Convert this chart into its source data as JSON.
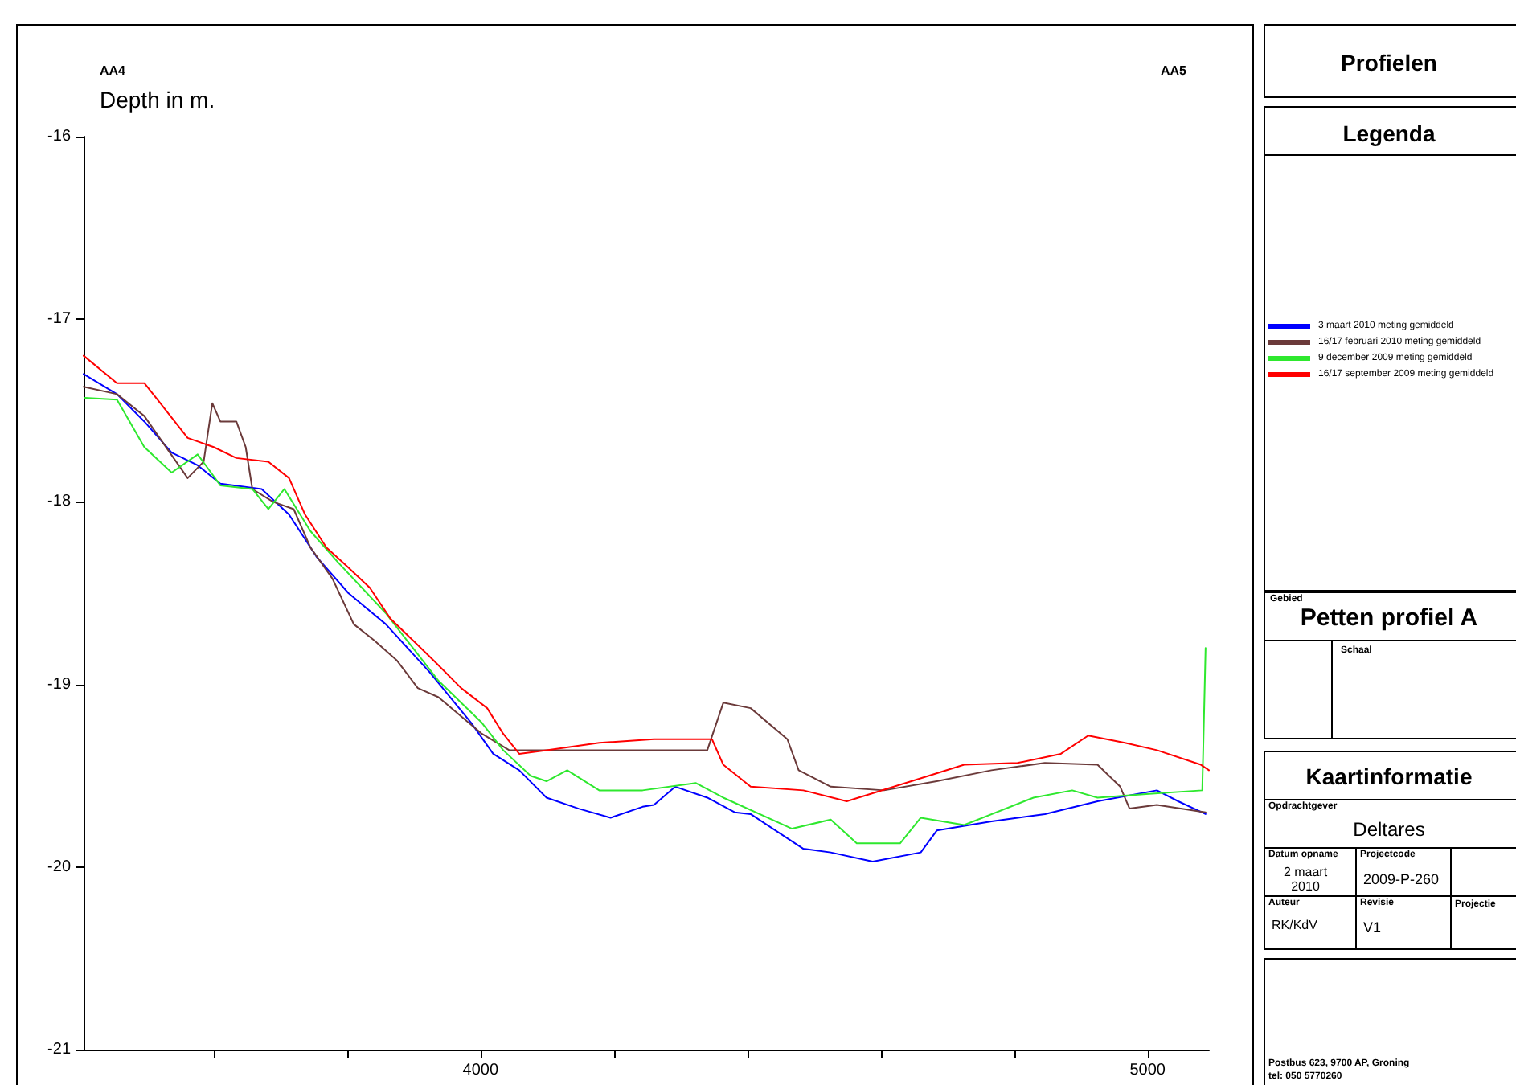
{
  "chart_data": {
    "type": "line",
    "title": "Profielen",
    "subtitle": "Petten profiel A",
    "ylabel": "Depth in m.",
    "legend_title": "Legenda",
    "legend": "right",
    "grid": false,
    "marker": "none",
    "line_style": "solid",
    "xlim": [
      3405,
      5092
    ],
    "xticks": [
      {
        "value": 3600,
        "label": null
      },
      {
        "value": 3800,
        "label": null
      },
      4000,
      {
        "value": 4200,
        "label": null
      },
      {
        "value": 4400,
        "label": null
      },
      {
        "value": 4600,
        "label": null
      },
      {
        "value": 4800,
        "label": null
      },
      5000
    ],
    "ylim": [
      -21,
      -16
    ],
    "yticks": [
      -21,
      -20,
      -19,
      -18,
      -17,
      -16
    ],
    "annotations": [
      "AA4",
      "AA5",
      "Gebied",
      "Schaal",
      "Kaartinformatie",
      "Opdrachtgever",
      "Deltares",
      "Datum opname",
      "2 maart 2010",
      "Projectcode",
      "2009-P-260",
      "Auteur",
      "RK/KdV",
      "Revisie",
      "V1",
      "Projectie",
      "Postbus 623, 9700 AP, Groning",
      "tel: 050 5770260"
    ],
    "series": [
      {
        "name": "3 maart 2010 meting gemiddeld",
        "color": "#0000ff",
        "x": [
          3405,
          3455,
          3496,
          3537,
          3576,
          3610,
          3672,
          3713,
          3754,
          3802,
          3858,
          3923,
          3986,
          4019,
          4058,
          4099,
          4147,
          4195,
          4243,
          4260,
          4292,
          4340,
          4381,
          4405,
          4484,
          4525,
          4588,
          4660,
          4684,
          4766,
          4846,
          4925,
          5014,
          5046,
          5087
        ],
        "values": [
          -17.3,
          -17.41,
          -17.56,
          -17.73,
          -17.8,
          -17.9,
          -17.93,
          -18.07,
          -18.3,
          -18.5,
          -18.67,
          -18.93,
          -19.21,
          -19.38,
          -19.47,
          -19.62,
          -19.68,
          -19.73,
          -19.67,
          -19.66,
          -19.56,
          -19.62,
          -19.7,
          -19.71,
          -19.9,
          -19.92,
          -19.97,
          -19.92,
          -19.8,
          -19.75,
          -19.71,
          -19.64,
          -19.58,
          -19.64,
          -19.71
        ]
      },
      {
        "name": "16/17 februari 2010 meting gemiddeld",
        "color": "#6b3a3a",
        "x": [
          3405,
          3455,
          3496,
          3561,
          3585,
          3598,
          3610,
          3634,
          3648,
          3658,
          3689,
          3720,
          3745,
          3778,
          3810,
          3841,
          3875,
          3906,
          3937,
          4002,
          4043,
          4140,
          4219,
          4340,
          4364,
          4405,
          4460,
          4477,
          4525,
          4605,
          4684,
          4766,
          4846,
          4925,
          4959,
          4973,
          5014,
          5087
        ],
        "values": [
          -17.37,
          -17.41,
          -17.53,
          -17.87,
          -17.78,
          -17.46,
          -17.56,
          -17.56,
          -17.7,
          -17.93,
          -18.0,
          -18.04,
          -18.25,
          -18.42,
          -18.67,
          -18.76,
          -18.87,
          -19.02,
          -19.07,
          -19.27,
          -19.36,
          -19.36,
          -19.36,
          -19.36,
          -19.1,
          -19.13,
          -19.3,
          -19.47,
          -19.56,
          -19.58,
          -19.53,
          -19.47,
          -19.43,
          -19.44,
          -19.56,
          -19.68,
          -19.66,
          -19.7
        ]
      },
      {
        "name": "9 december 2009 meting gemiddeld",
        "color": "#2ee82e",
        "x": [
          3407,
          3455,
          3496,
          3537,
          3576,
          3610,
          3658,
          3682,
          3706,
          3745,
          3786,
          3858,
          3937,
          4002,
          4034,
          4075,
          4099,
          4130,
          4178,
          4243,
          4323,
          4364,
          4467,
          4525,
          4564,
          4629,
          4660,
          4725,
          4829,
          4887,
          4925,
          4998,
          5082,
          5087
        ],
        "values": [
          -17.43,
          -17.44,
          -17.7,
          -17.84,
          -17.74,
          -17.91,
          -17.93,
          -18.04,
          -17.93,
          -18.16,
          -18.33,
          -18.61,
          -18.98,
          -19.21,
          -19.36,
          -19.5,
          -19.53,
          -19.47,
          -19.58,
          -19.58,
          -19.54,
          -19.62,
          -19.79,
          -19.74,
          -19.87,
          -19.87,
          -19.73,
          -19.77,
          -19.62,
          -19.58,
          -19.62,
          -19.6,
          -19.58,
          -18.8
        ]
      },
      {
        "name": "16/17 september 2009 meting gemiddeld",
        "color": "#ff0000",
        "x": [
          3405,
          3455,
          3496,
          3520,
          3561,
          3600,
          3634,
          3682,
          3713,
          3737,
          3769,
          3802,
          3834,
          3865,
          3899,
          3930,
          3971,
          4010,
          4034,
          4058,
          4099,
          4178,
          4260,
          4347,
          4364,
          4405,
          4484,
          4549,
          4646,
          4725,
          4805,
          4870,
          4911,
          4966,
          5014,
          5080,
          5092
        ],
        "values": [
          -17.2,
          -17.35,
          -17.35,
          -17.46,
          -17.65,
          -17.7,
          -17.76,
          -17.78,
          -17.87,
          -18.07,
          -18.25,
          -18.36,
          -18.47,
          -18.64,
          -18.76,
          -18.87,
          -19.02,
          -19.13,
          -19.27,
          -19.38,
          -19.36,
          -19.32,
          -19.3,
          -19.3,
          -19.44,
          -19.56,
          -19.58,
          -19.64,
          -19.53,
          -19.44,
          -19.43,
          -19.38,
          -19.28,
          -19.32,
          -19.36,
          -19.44,
          -19.47
        ]
      }
    ]
  }
}
